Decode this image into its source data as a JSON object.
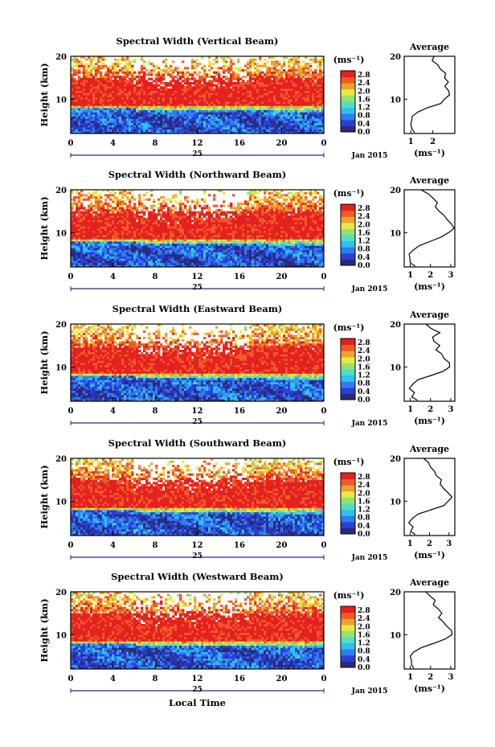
{
  "figure": {
    "xlabel": "Local Time",
    "ylabel": "Height (km)",
    "date_label": "Jan 2015",
    "day_label": "25",
    "unit_label": "(ms⁻¹)",
    "avg_title": "Average",
    "avg_xlabel": "(ms⁻¹)",
    "xticks": [
      "0",
      "4",
      "8",
      "12",
      "16",
      "20",
      "0"
    ],
    "yticks": [
      "20",
      "10"
    ],
    "colorbar_ticks": [
      "2.8",
      "2.4",
      "2.0",
      "1.6",
      "1.2",
      "0.8",
      "0.4",
      "0.0"
    ],
    "colorbar_colors": [
      "#2a2a7a",
      "#2b3fd6",
      "#2f7df0",
      "#2fc0f0",
      "#4fe0c0",
      "#9ae070",
      "#e8e840",
      "#f0a030",
      "#f05a28",
      "#e52020"
    ],
    "white_color": "#ffffff"
  },
  "chart_data": [
    {
      "type": "heatmap",
      "title": "Spectral Width (Vertical Beam)",
      "x_range": [
        0,
        24
      ],
      "y_range": [
        2,
        20
      ],
      "c_range": [
        0,
        3.0
      ],
      "profile": [
        [
          2.2,
          1.2
        ],
        [
          3,
          1.1
        ],
        [
          4,
          1.0
        ],
        [
          5,
          1.0
        ],
        [
          6,
          1.1
        ],
        [
          7,
          1.3
        ],
        [
          8,
          1.8
        ],
        [
          9,
          2.3
        ],
        [
          10,
          2.6
        ],
        [
          11,
          2.8
        ],
        [
          12,
          2.7
        ],
        [
          13,
          2.6
        ],
        [
          14,
          2.7
        ],
        [
          15,
          2.5
        ],
        [
          16,
          2.6
        ],
        [
          17,
          2.4
        ],
        [
          18,
          2.2
        ],
        [
          19,
          2.0
        ],
        [
          20,
          2.0
        ]
      ],
      "avg_xticks": [
        "1",
        "2"
      ],
      "avg_xlim": [
        0.7,
        3.0
      ]
    },
    {
      "type": "heatmap",
      "title": "Spectral Width (Northward Beam)",
      "x_range": [
        0,
        24
      ],
      "y_range": [
        2,
        20
      ],
      "c_range": [
        0,
        3.0
      ],
      "profile": [
        [
          2.2,
          1.2
        ],
        [
          3,
          1.0
        ],
        [
          4,
          0.95
        ],
        [
          5,
          1.0
        ],
        [
          6,
          1.1
        ],
        [
          7,
          1.4
        ],
        [
          8,
          2.0
        ],
        [
          9,
          2.6
        ],
        [
          10,
          2.9
        ],
        [
          11,
          3.1
        ],
        [
          12,
          3.0
        ],
        [
          13,
          2.8
        ],
        [
          14,
          2.6
        ],
        [
          15,
          2.5
        ],
        [
          16,
          2.3
        ],
        [
          17,
          2.4
        ],
        [
          18,
          2.1
        ],
        [
          19,
          1.9
        ],
        [
          20,
          1.6
        ]
      ],
      "avg_xticks": [
        "1",
        "2",
        "3"
      ],
      "avg_xlim": [
        0.7,
        3.2
      ]
    },
    {
      "type": "heatmap",
      "title": "Spectral Width (Eastward Beam)",
      "x_range": [
        0,
        24
      ],
      "y_range": [
        2,
        20
      ],
      "c_range": [
        0,
        3.0
      ],
      "profile": [
        [
          2.2,
          1.3
        ],
        [
          3,
          1.1
        ],
        [
          4,
          1.2
        ],
        [
          5,
          1.0
        ],
        [
          6,
          1.1
        ],
        [
          7,
          1.4
        ],
        [
          8,
          2.0
        ],
        [
          9,
          2.6
        ],
        [
          10,
          2.9
        ],
        [
          11,
          2.9
        ],
        [
          12,
          2.7
        ],
        [
          13,
          2.5
        ],
        [
          14,
          2.3
        ],
        [
          15,
          2.5
        ],
        [
          16,
          2.2
        ],
        [
          17,
          2.1
        ],
        [
          18,
          2.4
        ],
        [
          19,
          2.0
        ],
        [
          20,
          1.8
        ]
      ],
      "avg_xticks": [
        "1",
        "2",
        "3"
      ],
      "avg_xlim": [
        0.7,
        3.2
      ]
    },
    {
      "type": "heatmap",
      "title": "Spectral Width (Southward Beam)",
      "x_range": [
        0,
        24
      ],
      "y_range": [
        2,
        20
      ],
      "c_range": [
        0,
        3.0
      ],
      "profile": [
        [
          2.2,
          1.2
        ],
        [
          3,
          1.0
        ],
        [
          4,
          1.1
        ],
        [
          5,
          0.95
        ],
        [
          6,
          1.1
        ],
        [
          7,
          1.4
        ],
        [
          8,
          2.1
        ],
        [
          9,
          2.7
        ],
        [
          10,
          3.0
        ],
        [
          11,
          3.1
        ],
        [
          12,
          2.9
        ],
        [
          13,
          2.7
        ],
        [
          14,
          2.5
        ],
        [
          15,
          2.6
        ],
        [
          16,
          2.3
        ],
        [
          17,
          2.2
        ],
        [
          18,
          2.0
        ],
        [
          19,
          1.9
        ],
        [
          20,
          1.7
        ]
      ],
      "avg_xticks": [
        "1",
        "2",
        "3"
      ],
      "avg_xlim": [
        0.7,
        3.3
      ]
    },
    {
      "type": "heatmap",
      "title": "Spectral Width (Westward Beam)",
      "x_range": [
        0,
        24
      ],
      "y_range": [
        2,
        20
      ],
      "c_range": [
        0,
        3.0
      ],
      "profile": [
        [
          2.2,
          1.1
        ],
        [
          3,
          1.0
        ],
        [
          4,
          1.05
        ],
        [
          5,
          1.0
        ],
        [
          6,
          1.1
        ],
        [
          7,
          1.5
        ],
        [
          8,
          2.2
        ],
        [
          9,
          2.8
        ],
        [
          10,
          3.1
        ],
        [
          11,
          3.0
        ],
        [
          12,
          2.8
        ],
        [
          13,
          2.6
        ],
        [
          14,
          2.4
        ],
        [
          15,
          2.6
        ],
        [
          16,
          2.4
        ],
        [
          17,
          2.2
        ],
        [
          18,
          2.3
        ],
        [
          19,
          2.0
        ],
        [
          20,
          1.7
        ]
      ],
      "avg_xticks": [
        "1",
        "2",
        "3"
      ],
      "avg_xlim": [
        0.7,
        3.2
      ]
    }
  ]
}
